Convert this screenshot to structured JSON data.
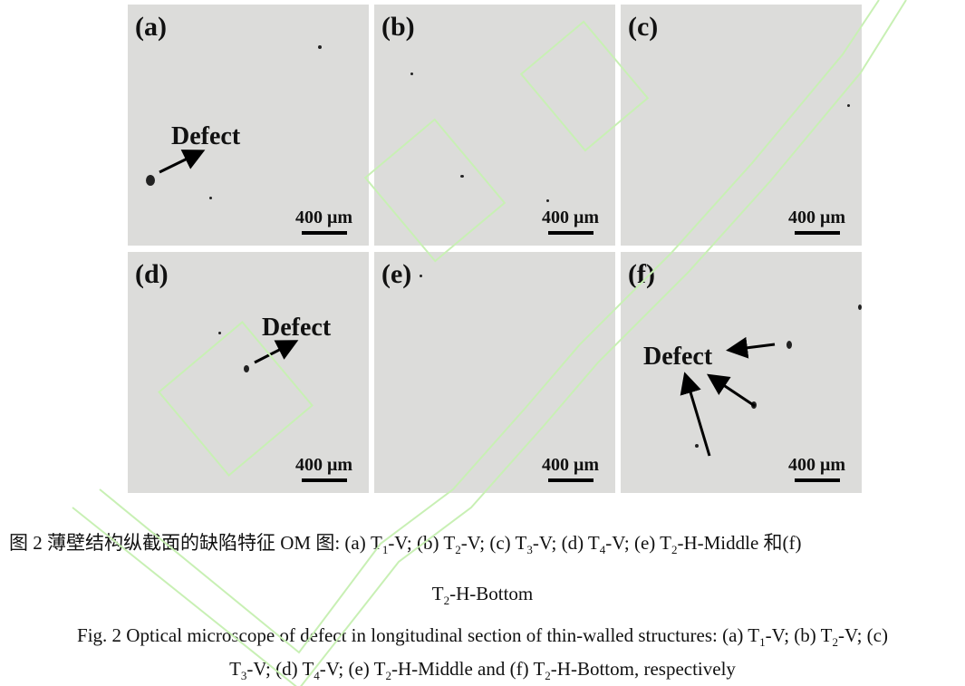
{
  "panels": [
    {
      "label": "(a)",
      "scale": "400 μm",
      "defect": "Defect"
    },
    {
      "label": "(b)",
      "scale": "400 μm"
    },
    {
      "label": "(c)",
      "scale": "400 μm"
    },
    {
      "label": "(d)",
      "scale": "400 μm",
      "defect": "Defect"
    },
    {
      "label": "(e)",
      "scale": "400 μm"
    },
    {
      "label": "(f)",
      "scale": "400 μm",
      "defect": "Defect"
    }
  ],
  "caption": {
    "cn_line1": [
      [
        "图 2  薄壁结构纵截面的缺陷特征 OM 图: (a) T",
        "1"
      ],
      [
        "-V; (b) T",
        "2"
      ],
      [
        "-V; (c) T",
        "3"
      ],
      [
        "-V; (d) T",
        "4"
      ],
      [
        "-V; (e) T",
        "2"
      ],
      [
        "-H-Middle 和(f)",
        ""
      ]
    ],
    "cn_line2": [
      [
        "T",
        "2"
      ],
      [
        "-H-Bottom",
        ""
      ]
    ],
    "en_line1": [
      [
        "Fig. 2 Optical microscope of defect in longitudinal section of thin-walled structures: (a) T",
        "1"
      ],
      [
        "-V; (b) T",
        "2"
      ],
      [
        "-V; (c)",
        ""
      ]
    ],
    "en_line2": [
      [
        "T",
        "3"
      ],
      [
        "-V; (d) T",
        "4"
      ],
      [
        "-V; (e) T",
        "2"
      ],
      [
        "-H-Middle and (f) T",
        "2"
      ],
      [
        "-H-Bottom, respectively",
        ""
      ]
    ]
  },
  "watermark_color": "#c8f0b4"
}
